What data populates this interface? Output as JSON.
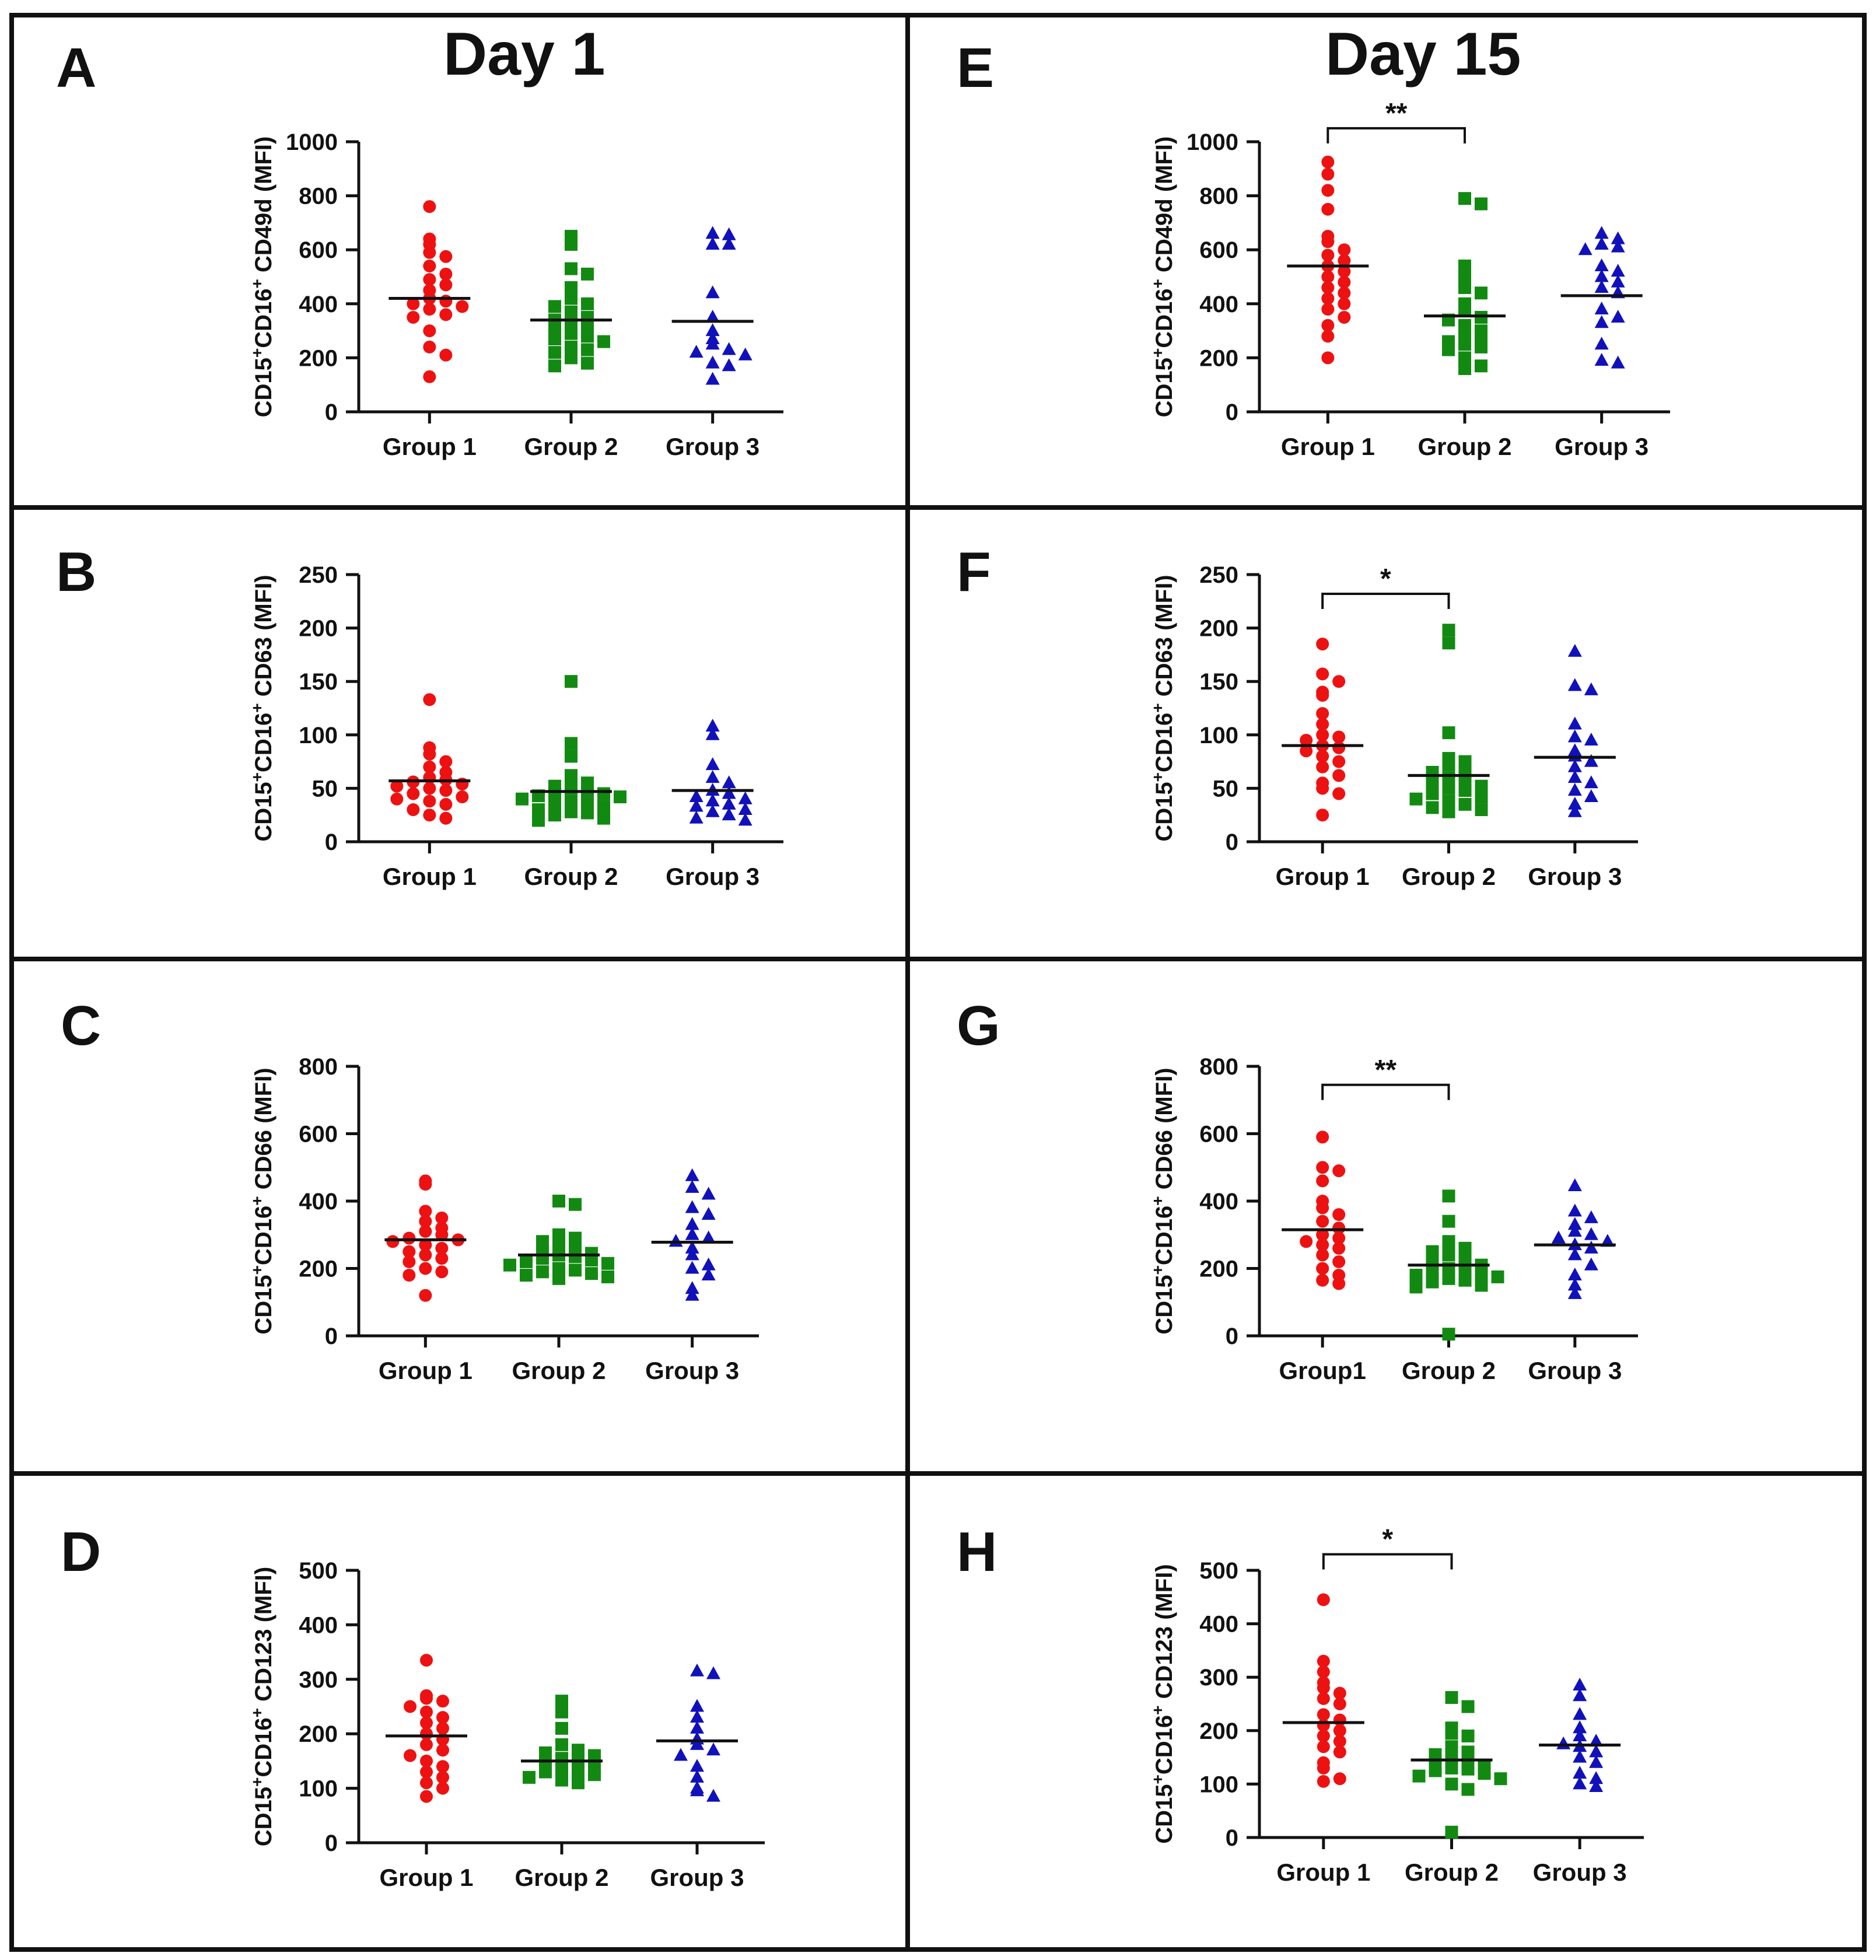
{
  "figure": {
    "day_left": "Day 1",
    "day_right": "Day 15",
    "colors": {
      "group1": "#ee1111",
      "group2": "#128a12",
      "group3": "#1111bb",
      "axis": "#111111"
    }
  },
  "chart_data": [
    {
      "panel": "A",
      "type": "scatter",
      "day": "Day 1",
      "ylabel_parts": [
        "CD15",
        "+",
        "CD16",
        "+",
        " CD49d (MFI)"
      ],
      "ylim": [
        0,
        1000
      ],
      "yticks": [
        0,
        200,
        400,
        600,
        800,
        1000
      ],
      "categories": [
        "Group 1",
        "Group 2",
        "Group 3"
      ],
      "series": [
        {
          "name": "Group 1",
          "mean": 420,
          "values": [
            760,
            640,
            620,
            590,
            575,
            540,
            510,
            490,
            470,
            450,
            420,
            410,
            400,
            390,
            380,
            360,
            350,
            300,
            240,
            210,
            130
          ]
        },
        {
          "name": "Group 2",
          "mean": 340,
          "values": [
            650,
            620,
            530,
            510,
            460,
            420,
            400,
            390,
            370,
            350,
            340,
            330,
            310,
            300,
            290,
            280,
            270,
            260,
            240,
            230,
            220,
            200,
            180,
            170
          ]
        },
        {
          "name": "Group 3",
          "mean": 335,
          "values": [
            660,
            655,
            620,
            620,
            440,
            350,
            300,
            270,
            250,
            230,
            220,
            210,
            180,
            170,
            120
          ]
        }
      ],
      "annotation": null
    },
    {
      "panel": "B",
      "type": "scatter",
      "day": "Day 1",
      "ylabel_parts": [
        "CD15",
        "+",
        "CD16",
        "+",
        " CD63 (MFI)"
      ],
      "ylim": [
        0,
        250
      ],
      "yticks": [
        0,
        50,
        100,
        150,
        200,
        250
      ],
      "categories": [
        "Group 1",
        "Group 2",
        "Group 3"
      ],
      "series": [
        {
          "name": "Group 1",
          "mean": 57,
          "values": [
            133,
            88,
            82,
            75,
            70,
            65,
            60,
            58,
            56,
            54,
            52,
            50,
            48,
            45,
            42,
            40,
            38,
            35,
            30,
            25,
            22
          ]
        },
        {
          "name": "Group 2",
          "mean": 47,
          "values": [
            150,
            92,
            80,
            62,
            58,
            55,
            52,
            50,
            48,
            46,
            45,
            43,
            42,
            40,
            38,
            36,
            35,
            33,
            30,
            28,
            27,
            25,
            22,
            20
          ]
        },
        {
          "name": "Group 3",
          "mean": 48,
          "values": [
            108,
            100,
            72,
            60,
            55,
            48,
            45,
            42,
            40,
            38,
            35,
            33,
            30,
            28,
            25,
            22,
            20
          ]
        }
      ],
      "annotation": null
    },
    {
      "panel": "C",
      "type": "scatter",
      "day": "Day 1",
      "ylabel_parts": [
        "CD15",
        "+",
        "CD16",
        "+",
        " CD66 (MFI)"
      ],
      "ylim": [
        0,
        800
      ],
      "yticks": [
        0,
        200,
        400,
        600,
        800
      ],
      "categories": [
        "Group 1",
        "Group 2",
        "Group 3"
      ],
      "series": [
        {
          "name": "Group 1",
          "mean": 285,
          "values": [
            460,
            450,
            370,
            350,
            340,
            320,
            310,
            300,
            290,
            285,
            280,
            270,
            260,
            250,
            240,
            230,
            220,
            200,
            190,
            180,
            120
          ]
        },
        {
          "name": "Group 2",
          "mean": 240,
          "values": [
            400,
            390,
            300,
            290,
            280,
            270,
            260,
            250,
            245,
            240,
            235,
            230,
            225,
            220,
            215,
            210,
            200,
            195,
            190,
            185,
            180,
            175,
            170
          ]
        },
        {
          "name": "Group 3",
          "mean": 278,
          "values": [
            475,
            440,
            420,
            380,
            360,
            330,
            300,
            290,
            280,
            260,
            240,
            210,
            200,
            180,
            140,
            120
          ]
        }
      ],
      "annotation": null
    },
    {
      "panel": "D",
      "type": "scatter",
      "day": "Day 1",
      "ylabel_parts": [
        "CD15",
        "+",
        "CD16",
        "+",
        " CD123 (MFI)"
      ],
      "ylim": [
        0,
        500
      ],
      "yticks": [
        0,
        100,
        200,
        300,
        400,
        500
      ],
      "categories": [
        "Group 1",
        "Group 2",
        "Group 3"
      ],
      "series": [
        {
          "name": "Group 1",
          "mean": 196,
          "values": [
            335,
            270,
            265,
            260,
            250,
            240,
            230,
            220,
            210,
            200,
            190,
            180,
            170,
            160,
            150,
            140,
            130,
            120,
            110,
            100,
            85
          ]
        },
        {
          "name": "Group 2",
          "mean": 150,
          "values": [
            260,
            240,
            210,
            180,
            170,
            165,
            160,
            155,
            150,
            145,
            140,
            135,
            130,
            130,
            125,
            120,
            115,
            110
          ]
        },
        {
          "name": "Group 3",
          "mean": 187,
          "values": [
            315,
            310,
            250,
            230,
            210,
            190,
            180,
            170,
            160,
            140,
            120,
            100,
            95,
            85
          ]
        }
      ],
      "annotation": null
    },
    {
      "panel": "E",
      "type": "scatter",
      "day": "Day 15",
      "ylabel_parts": [
        "CD15",
        "+",
        "CD16",
        "+",
        " CD49d (MFI)"
      ],
      "ylim": [
        0,
        1000
      ],
      "yticks": [
        0,
        200,
        400,
        600,
        800,
        1000
      ],
      "categories": [
        "Group 1",
        "Group 2",
        "Group 3"
      ],
      "series": [
        {
          "name": "Group 1",
          "mean": 540,
          "values": [
            925,
            880,
            820,
            750,
            650,
            630,
            600,
            580,
            560,
            540,
            520,
            500,
            480,
            460,
            440,
            420,
            400,
            380,
            350,
            320,
            280,
            200
          ]
        },
        {
          "name": "Group 2",
          "mean": 355,
          "values": [
            790,
            770,
            540,
            500,
            460,
            440,
            400,
            380,
            350,
            340,
            320,
            300,
            280,
            270,
            260,
            250,
            240,
            230,
            200,
            170,
            160
          ]
        },
        {
          "name": "Group 3",
          "mean": 430,
          "values": [
            660,
            640,
            620,
            610,
            600,
            540,
            520,
            500,
            480,
            460,
            440,
            380,
            350,
            330,
            250,
            190,
            180
          ]
        }
      ],
      "annotation": {
        "label": "**",
        "from": 0,
        "to": 1,
        "y": 1050
      }
    },
    {
      "panel": "F",
      "type": "scatter",
      "day": "Day 15",
      "ylabel_parts": [
        "CD15",
        "+",
        "CD16",
        "+",
        " CD63 (MFI)"
      ],
      "ylim": [
        0,
        250
      ],
      "yticks": [
        0,
        50,
        100,
        150,
        200,
        250
      ],
      "categories": [
        "Group 1",
        "Group 2",
        "Group 3"
      ],
      "series": [
        {
          "name": "Group 1",
          "mean": 90,
          "values": [
            185,
            157,
            150,
            140,
            137,
            120,
            110,
            100,
            98,
            95,
            90,
            88,
            85,
            80,
            75,
            70,
            62,
            55,
            50,
            45,
            25
          ]
        },
        {
          "name": "Group 2",
          "mean": 62,
          "values": [
            198,
            186,
            102,
            78,
            75,
            72,
            68,
            65,
            60,
            58,
            55,
            52,
            50,
            48,
            45,
            42,
            40,
            38,
            35,
            32,
            30,
            28
          ]
        },
        {
          "name": "Group 3",
          "mean": 79,
          "values": [
            178,
            146,
            142,
            110,
            98,
            95,
            85,
            80,
            75,
            70,
            60,
            55,
            48,
            42,
            35,
            28
          ]
        }
      ],
      "annotation": {
        "label": "*",
        "from": 0,
        "to": 1,
        "y": 232
      }
    },
    {
      "panel": "G",
      "type": "scatter",
      "day": "Day 15",
      "ylabel_parts": [
        "CD15",
        "+",
        "CD16",
        "+",
        " CD66 (MFI)"
      ],
      "ylim": [
        0,
        800
      ],
      "yticks": [
        0,
        200,
        400,
        600,
        800
      ],
      "categories": [
        "Group1",
        "Group 2",
        "Group 3"
      ],
      "series": [
        {
          "name": "Group1",
          "mean": 315,
          "values": [
            590,
            500,
            490,
            460,
            400,
            380,
            360,
            340,
            320,
            300,
            290,
            280,
            270,
            260,
            240,
            220,
            200,
            180,
            165,
            155
          ]
        },
        {
          "name": "Group 2",
          "mean": 210,
          "values": [
            415,
            340,
            280,
            270,
            260,
            250,
            240,
            230,
            220,
            210,
            200,
            195,
            190,
            185,
            180,
            175,
            170,
            165,
            160,
            150,
            145,
            5
          ]
        },
        {
          "name": "Group 3",
          "mean": 270,
          "values": [
            445,
            370,
            350,
            330,
            310,
            300,
            290,
            280,
            270,
            260,
            240,
            210,
            180,
            150,
            125
          ]
        }
      ],
      "annotation": {
        "label": "**",
        "from": 0,
        "to": 1,
        "y": 745
      }
    },
    {
      "panel": "H",
      "type": "scatter",
      "day": "Day 15",
      "ylabel_parts": [
        "CD15",
        "+",
        "CD16",
        "+",
        " CD123 (MFI)"
      ],
      "ylim": [
        0,
        500
      ],
      "yticks": [
        0,
        100,
        200,
        300,
        400,
        500
      ],
      "categories": [
        "Group 1",
        "Group 2",
        "Group 3"
      ],
      "series": [
        {
          "name": "Group 1",
          "mean": 215,
          "values": [
            445,
            330,
            310,
            290,
            280,
            270,
            260,
            250,
            230,
            220,
            210,
            200,
            190,
            180,
            170,
            160,
            140,
            130,
            110,
            105
          ]
        },
        {
          "name": "Group 2",
          "mean": 145,
          "values": [
            262,
            245,
            205,
            195,
            190,
            170,
            160,
            155,
            150,
            145,
            140,
            135,
            130,
            128,
            125,
            120,
            115,
            110,
            100,
            90,
            10
          ]
        },
        {
          "name": "Group 3",
          "mean": 173,
          "values": [
            285,
            265,
            230,
            205,
            190,
            180,
            175,
            170,
            160,
            150,
            140,
            120,
            110,
            100,
            95
          ]
        }
      ],
      "annotation": {
        "label": "*",
        "from": 0,
        "to": 1,
        "y": 530
      }
    }
  ]
}
